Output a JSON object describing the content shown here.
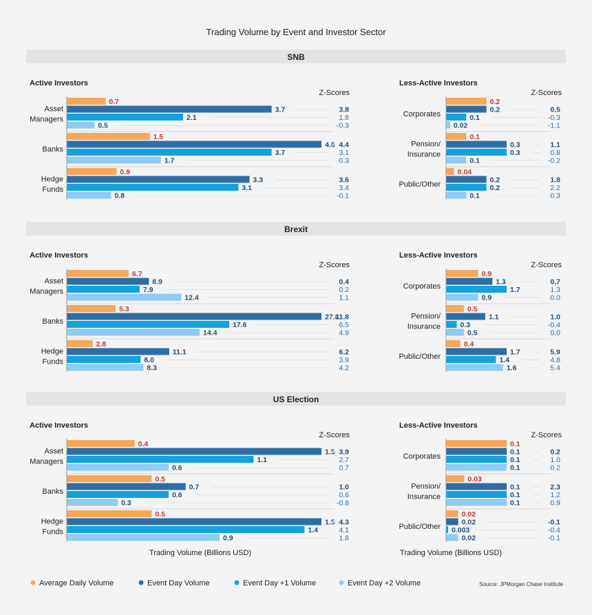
{
  "title": "Trading Volume by Event and Investor Sector",
  "source": "Source: JPMorgan Chase Institute",
  "xlabel": "Trading Volume (Billions USD)",
  "zscore_label": "Z-Scores",
  "colors": {
    "avg": "#f8a65a",
    "event": "#2e6ea6",
    "event1": "#13a2db",
    "event2": "#8fcbf2",
    "avg_label": "#c0392b",
    "label": "#1f4e79",
    "band": "#e3e3e3"
  },
  "legend": [
    {
      "key": "avg",
      "label": "Average Daily Volume"
    },
    {
      "key": "event",
      "label": "Event Day Volume"
    },
    {
      "key": "event1",
      "label": "Event Day +1 Volume"
    },
    {
      "key": "event2",
      "label": "Event Day +2 Volume"
    }
  ],
  "chart_data": [
    {
      "type": "bar",
      "event": "SNB",
      "panels": [
        {
          "title": "Active Investors",
          "groups": [
            {
              "label": "Asset\nManagers",
              "values": [
                "0.7",
                "3.7",
                "2.1",
                "0.5"
              ],
              "z": [
                "3.8",
                "1.8",
                "-0.3"
              ]
            },
            {
              "label": "Banks",
              "values": [
                "1.5",
                "4.6",
                "3.7",
                "1.7"
              ],
              "z": [
                "4.4",
                "3.1",
                "0.3"
              ]
            },
            {
              "label": "Hedge\nFunds",
              "values": [
                "0.9",
                "3.3",
                "3.1",
                "0.8"
              ],
              "z": [
                "3.6",
                "3.4",
                "-0.1"
              ]
            }
          ]
        },
        {
          "title": "Less-Active Investors",
          "groups": [
            {
              "label": "Corporates",
              "values": [
                "0.2",
                "0.2",
                "0.1",
                "0.02"
              ],
              "z": [
                "0.5",
                "-0.3",
                "-1.1"
              ]
            },
            {
              "label": "Pension/\nInsurance",
              "values": [
                "0.1",
                "0.3",
                "0.3",
                "0.1"
              ],
              "z": [
                "1.1",
                "0.8",
                "-0.2"
              ]
            },
            {
              "label": "Public/Other",
              "values": [
                "0.04",
                "0.2",
                "0.2",
                "0.1"
              ],
              "z": [
                "1.8",
                "2.2",
                "0.3"
              ]
            }
          ]
        }
      ]
    },
    {
      "type": "bar",
      "event": "Brexit",
      "panels": [
        {
          "title": "Active Investors",
          "groups": [
            {
              "label": "Asset\nManagers",
              "values": [
                "6.7",
                "8.9",
                "7.9",
                "12.4"
              ],
              "z": [
                "0.4",
                "0.2",
                "1.1"
              ]
            },
            {
              "label": "Banks",
              "values": [
                "5.3",
                "27.6",
                "17.6",
                "14.4"
              ],
              "z": [
                "11.8",
                "6.5",
                "4.9"
              ]
            },
            {
              "label": "Hedge\nFunds",
              "values": [
                "2.8",
                "11.1",
                "8.0",
                "8.3"
              ],
              "z": [
                "6.2",
                "3.9",
                "4.2"
              ]
            }
          ]
        },
        {
          "title": "Less-Active Investors",
          "groups": [
            {
              "label": "Corporates",
              "values": [
                "0.9",
                "1.3",
                "1.7",
                "0.9"
              ],
              "z": [
                "0.7",
                "1.3",
                "0.0"
              ]
            },
            {
              "label": "Pension/\nInsurance",
              "values": [
                "0.5",
                "1.1",
                "0.3",
                "0.5"
              ],
              "z": [
                "1.0",
                "-0.4",
                "0.0"
              ]
            },
            {
              "label": "Public/Other",
              "values": [
                "0.4",
                "1.7",
                "1.4",
                "1.6"
              ],
              "z": [
                "5.9",
                "4.8",
                "5.4"
              ]
            }
          ]
        }
      ]
    },
    {
      "type": "bar",
      "event": "US Election",
      "panels": [
        {
          "title": "Active Investors",
          "groups": [
            {
              "label": "Asset\nManagers",
              "values": [
                "0.4",
                "1.5",
                "1.1",
                "0.6"
              ],
              "z": [
                "3.9",
                "2.7",
                "0.7"
              ]
            },
            {
              "label": "Banks",
              "values": [
                "0.5",
                "0.7",
                "0.6",
                "0.3"
              ],
              "z": [
                "1.0",
                "0.6",
                "-0.8"
              ]
            },
            {
              "label": "Hedge\nFunds",
              "values": [
                "0.5",
                "1.5",
                "1.4",
                "0.9"
              ],
              "z": [
                "4.3",
                "4.1",
                "1.8"
              ]
            }
          ]
        },
        {
          "title": "Less-Active Investors",
          "groups": [
            {
              "label": "Corporates",
              "values": [
                "0.1",
                "0.1",
                "0.1",
                "0.1"
              ],
              "z": [
                "0.2",
                "1.0",
                "0.2"
              ]
            },
            {
              "label": "Pension/\nInsurance",
              "values": [
                "0.03",
                "0.1",
                "0.1",
                "0.1"
              ],
              "z": [
                "2.3",
                "1.2",
                "0.9"
              ]
            },
            {
              "label": "Public/Other",
              "values": [
                "0.02",
                "0.02",
                "0.003",
                "0.02"
              ],
              "z": [
                "-0.1",
                "-0.4",
                "-0.1"
              ]
            }
          ]
        }
      ]
    }
  ]
}
